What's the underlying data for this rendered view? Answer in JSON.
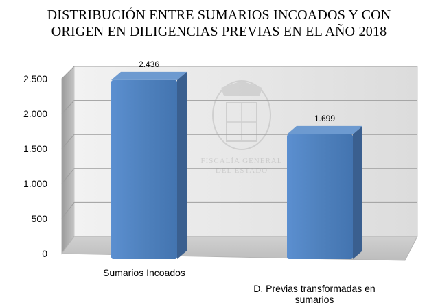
{
  "chart_data": {
    "type": "bar",
    "title_lines": [
      "DISTRIBUCIÓN ENTRE SUMARIOS INCOADOS Y CON",
      "ORIGEN EN DILIGENCIAS PREVIAS EN EL AÑO 2018"
    ],
    "categories": [
      [
        "Sumarios Incoados"
      ],
      [
        "D. Previas transformadas en",
        "sumarios"
      ]
    ],
    "values": [
      2436,
      1699
    ],
    "data_labels": [
      "2.436",
      "1.699"
    ],
    "y_ticks": [
      0,
      500,
      1000,
      1500,
      2000,
      2500
    ],
    "y_tick_labels": [
      "0",
      "500",
      "1.000",
      "1.500",
      "2.000",
      "2.500"
    ],
    "ylim": [
      0,
      2500
    ],
    "grid": true,
    "legend": "none",
    "style": "3d-column",
    "watermark_text": [
      "FISCALÍA GENERAL",
      "DEL ESTADO"
    ],
    "colors": {
      "bar_front": "#4f81bd",
      "bar_side": "#3a5f8f",
      "bar_top": "#6d9ad0",
      "wall": "#e6e6e6",
      "floor": "#c8c8c8"
    }
  }
}
